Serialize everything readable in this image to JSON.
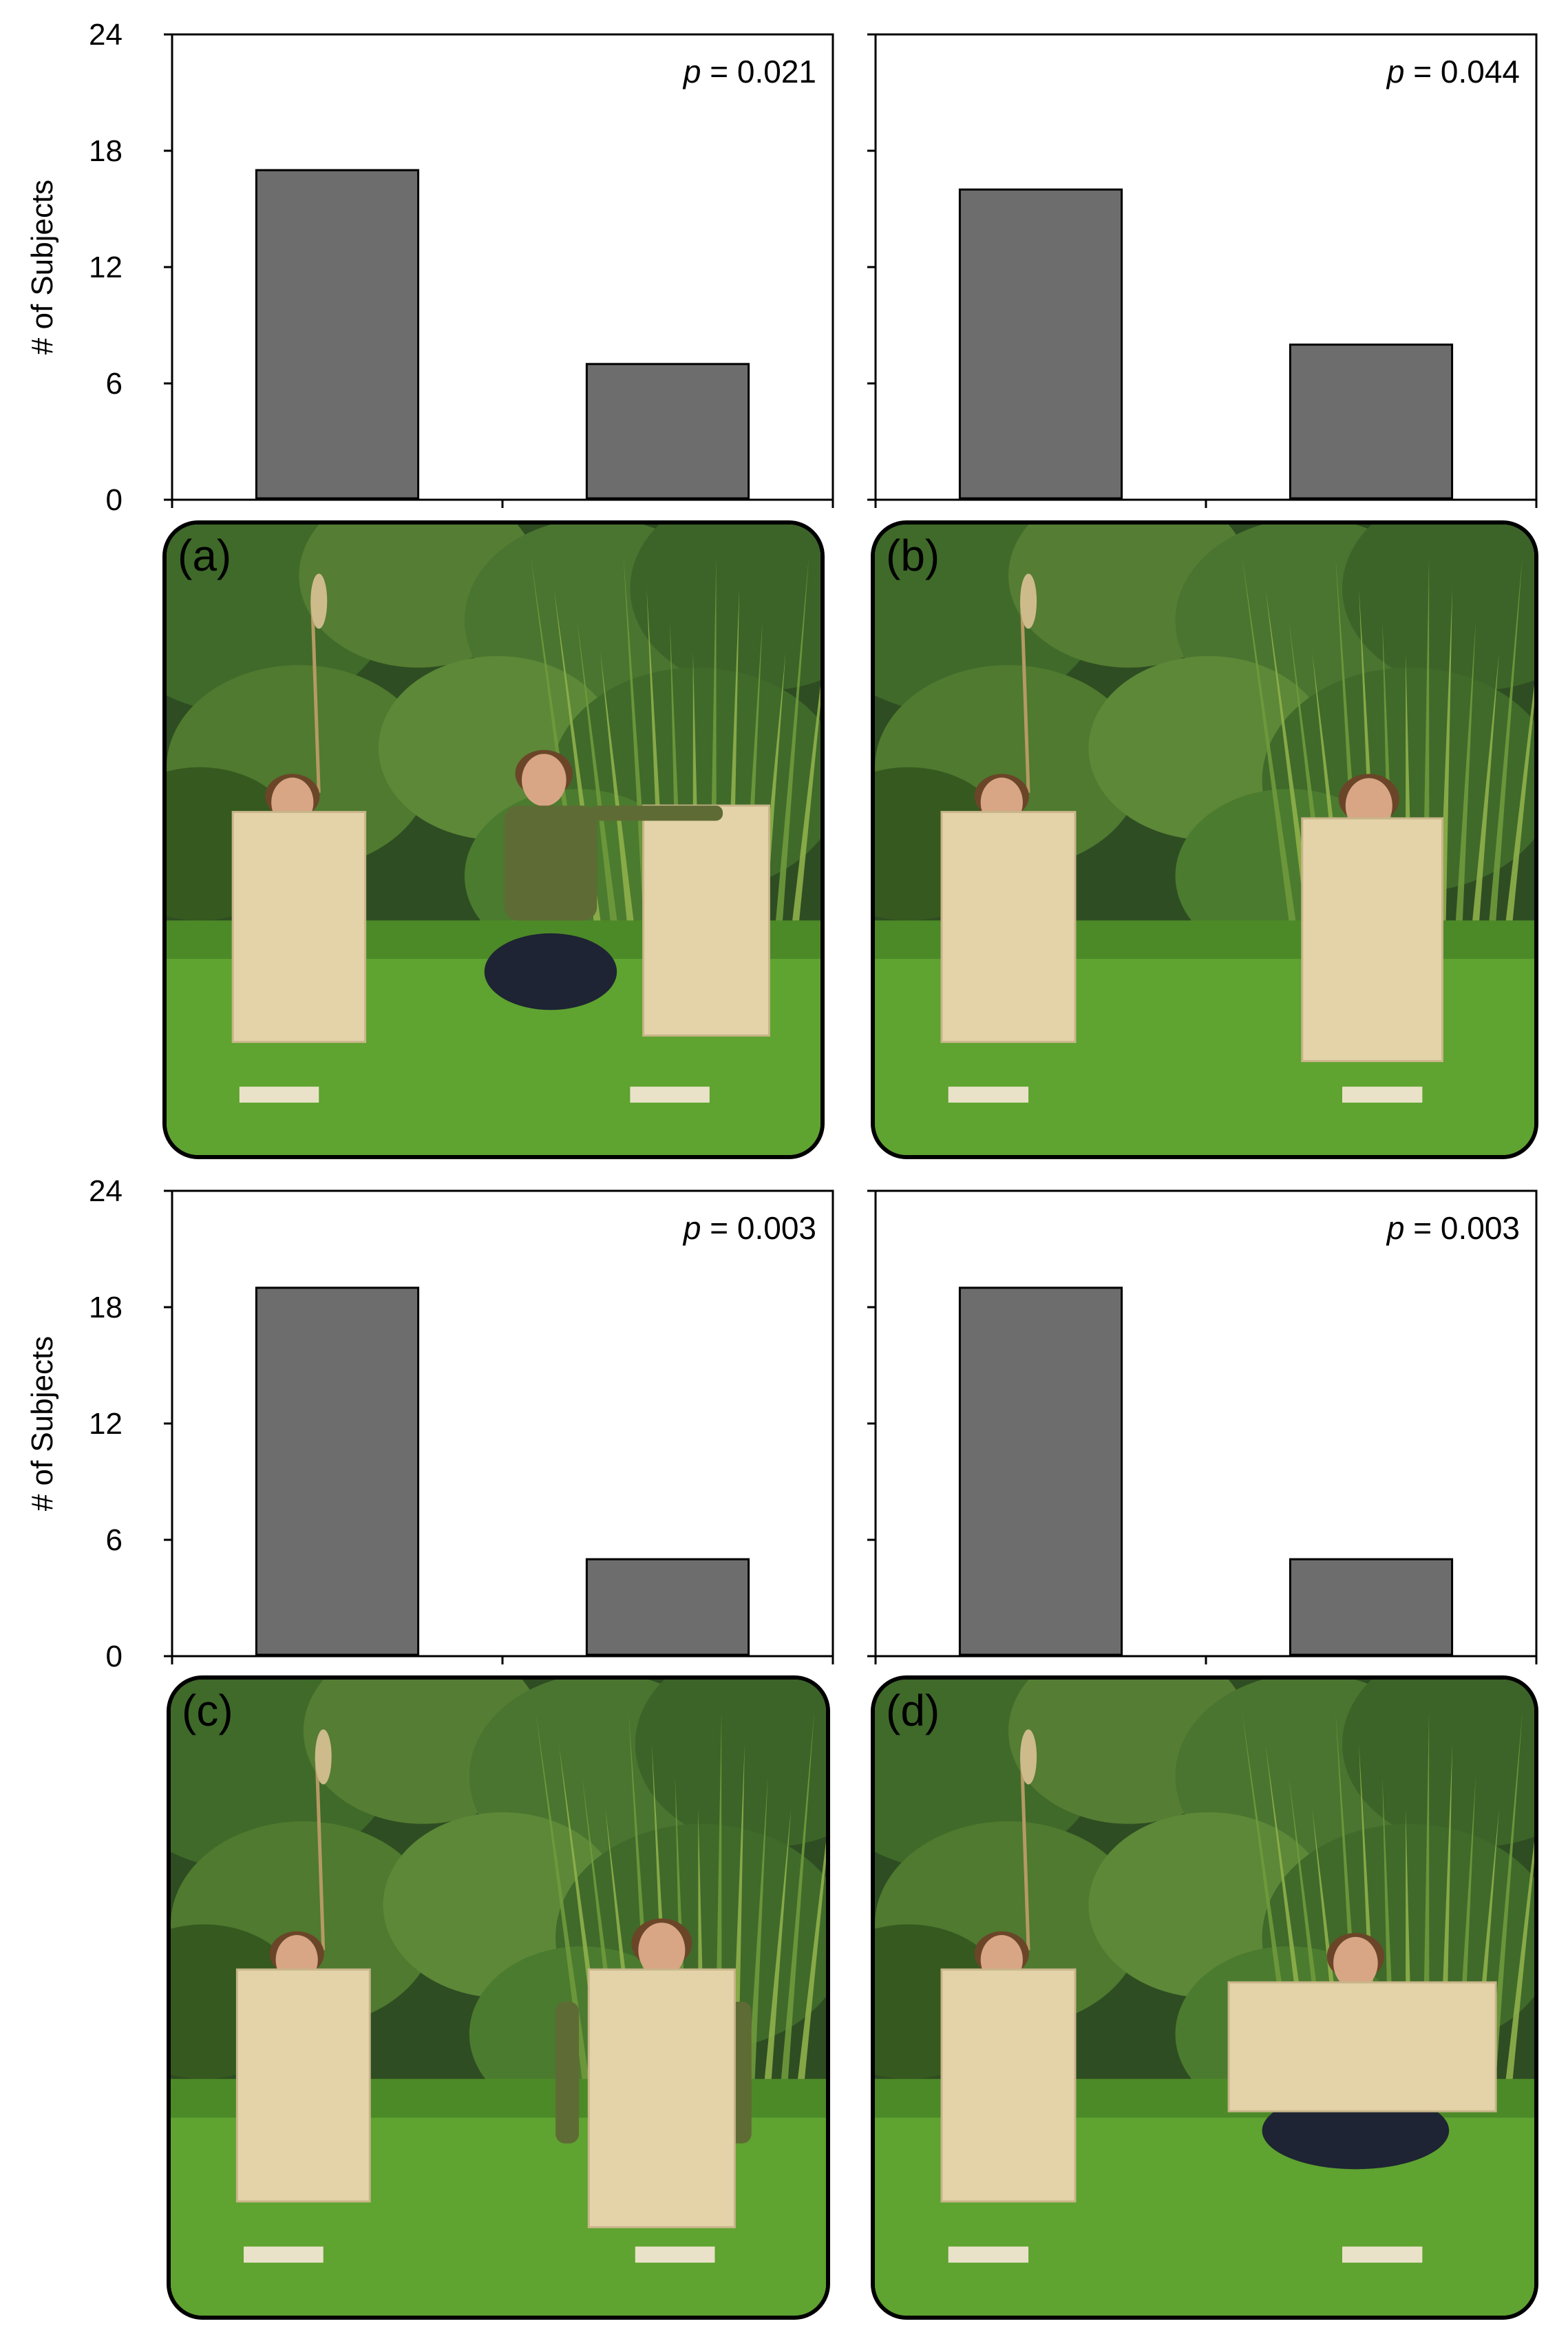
{
  "chart_data": [
    {
      "type": "bar",
      "panel": "(a)",
      "categories": [
        "",
        ""
      ],
      "values": [
        17,
        7
      ],
      "ylabel": "# of Subjects",
      "ylim": [
        0,
        24
      ],
      "yticks": [
        "0",
        "6",
        "12",
        "18",
        "24"
      ],
      "annotation": "p = 0.021",
      "grid": false
    },
    {
      "type": "bar",
      "panel": "(b)",
      "categories": [
        "",
        ""
      ],
      "values": [
        16,
        8
      ],
      "ylabel": "",
      "ylim": [
        0,
        24
      ],
      "yticks": [],
      "annotation": "p = 0.044",
      "grid": false
    },
    {
      "type": "bar",
      "panel": "(c)",
      "categories": [
        "",
        ""
      ],
      "values": [
        19,
        5
      ],
      "ylabel": "# of Subjects",
      "ylim": [
        0,
        24
      ],
      "yticks": [
        "0",
        "6",
        "12",
        "18",
        "24"
      ],
      "annotation": "p = 0.003",
      "grid": false
    },
    {
      "type": "bar",
      "panel": "(d)",
      "categories": [
        "",
        ""
      ],
      "values": [
        19,
        5
      ],
      "ylabel": "",
      "ylim": [
        0,
        24
      ],
      "yticks": [],
      "annotation": "p = 0.003",
      "grid": false
    }
  ],
  "colors": {
    "bar_fill": "#6d6d6d",
    "bar_stroke": "#000000",
    "axis": "#000000"
  },
  "photos": [
    {
      "panel_label": "(a)",
      "scene": "two-person-left-squatting-beside-board"
    },
    {
      "panel_label": "(b)",
      "scene": "two-faces-behind-boards"
    },
    {
      "panel_label": "(c)",
      "scene": "right-person-arms-out-behind-board"
    },
    {
      "panel_label": "(d)",
      "scene": "right-person-horizontal-board"
    }
  ]
}
